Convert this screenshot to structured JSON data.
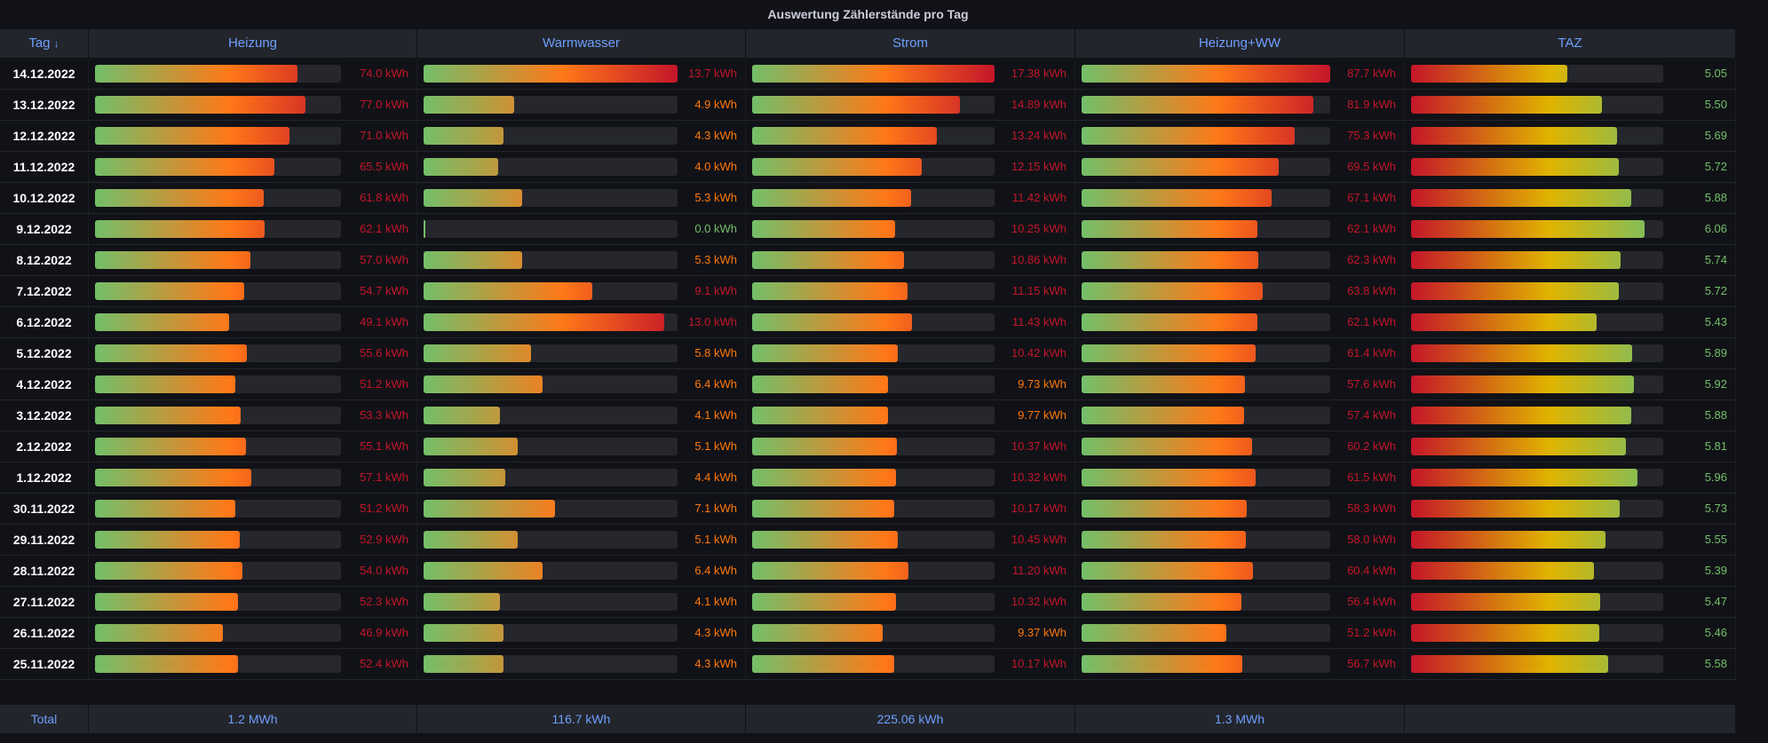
{
  "panel": {
    "title": "Auswertung Zählerstände pro Tag"
  },
  "header": {
    "columns": [
      {
        "label": "Tag",
        "sort_icon": "↓"
      },
      {
        "label": "Heizung"
      },
      {
        "label": "Warmwasser"
      },
      {
        "label": "Strom"
      },
      {
        "label": "Heizung+WW"
      },
      {
        "label": "TAZ"
      }
    ]
  },
  "colors": {
    "green": "#73bf69",
    "orange": "#ff7818",
    "red": "#c4162a",
    "yellow": "#e0b400",
    "text_red": "#c4162a",
    "text_orange": "#ff780a",
    "text_green": "#73bf69",
    "link_blue": "#6e9fff"
  },
  "rows": [
    {
      "tag": "14.12.2022",
      "heizung": "74.0 kWh",
      "heizung_v": 74.0,
      "ww": "13.7 kWh",
      "ww_v": 13.7,
      "strom": "17.38 kWh",
      "strom_v": 17.38,
      "hww": "87.7 kWh",
      "hww_v": 87.7,
      "taz": "5.05",
      "taz_v": 5.05
    },
    {
      "tag": "13.12.2022",
      "heizung": "77.0 kWh",
      "heizung_v": 77.0,
      "ww": "4.9 kWh",
      "ww_v": 4.9,
      "strom": "14.89 kWh",
      "strom_v": 14.89,
      "hww": "81.9 kWh",
      "hww_v": 81.9,
      "taz": "5.50",
      "taz_v": 5.5
    },
    {
      "tag": "12.12.2022",
      "heizung": "71.0 kWh",
      "heizung_v": 71.0,
      "ww": "4.3 kWh",
      "ww_v": 4.3,
      "strom": "13.24 kWh",
      "strom_v": 13.24,
      "hww": "75.3 kWh",
      "hww_v": 75.3,
      "taz": "5.69",
      "taz_v": 5.69
    },
    {
      "tag": "11.12.2022",
      "heizung": "65.5 kWh",
      "heizung_v": 65.5,
      "ww": "4.0 kWh",
      "ww_v": 4.0,
      "strom": "12.15 kWh",
      "strom_v": 12.15,
      "hww": "69.5 kWh",
      "hww_v": 69.5,
      "taz": "5.72",
      "taz_v": 5.72
    },
    {
      "tag": "10.12.2022",
      "heizung": "61.8 kWh",
      "heizung_v": 61.8,
      "ww": "5.3 kWh",
      "ww_v": 5.3,
      "strom": "11.42 kWh",
      "strom_v": 11.42,
      "hww": "67.1 kWh",
      "hww_v": 67.1,
      "taz": "5.88",
      "taz_v": 5.88
    },
    {
      "tag": "9.12.2022",
      "heizung": "62.1 kWh",
      "heizung_v": 62.1,
      "ww": "0.0 kWh",
      "ww_v": 0.0,
      "strom": "10.25 kWh",
      "strom_v": 10.25,
      "hww": "62.1 kWh",
      "hww_v": 62.1,
      "taz": "6.06",
      "taz_v": 6.06
    },
    {
      "tag": "8.12.2022",
      "heizung": "57.0 kWh",
      "heizung_v": 57.0,
      "ww": "5.3 kWh",
      "ww_v": 5.3,
      "strom": "10.86 kWh",
      "strom_v": 10.86,
      "hww": "62.3 kWh",
      "hww_v": 62.3,
      "taz": "5.74",
      "taz_v": 5.74
    },
    {
      "tag": "7.12.2022",
      "heizung": "54.7 kWh",
      "heizung_v": 54.7,
      "ww": "9.1 kWh",
      "ww_v": 9.1,
      "strom": "11.15 kWh",
      "strom_v": 11.15,
      "hww": "63.8 kWh",
      "hww_v": 63.8,
      "taz": "5.72",
      "taz_v": 5.72
    },
    {
      "tag": "6.12.2022",
      "heizung": "49.1 kWh",
      "heizung_v": 49.1,
      "ww": "13.0 kWh",
      "ww_v": 13.0,
      "strom": "11.43 kWh",
      "strom_v": 11.43,
      "hww": "62.1 kWh",
      "hww_v": 62.1,
      "taz": "5.43",
      "taz_v": 5.43
    },
    {
      "tag": "5.12.2022",
      "heizung": "55.6 kWh",
      "heizung_v": 55.6,
      "ww": "5.8 kWh",
      "ww_v": 5.8,
      "strom": "10.42 kWh",
      "strom_v": 10.42,
      "hww": "61.4 kWh",
      "hww_v": 61.4,
      "taz": "5.89",
      "taz_v": 5.89
    },
    {
      "tag": "4.12.2022",
      "heizung": "51.2 kWh",
      "heizung_v": 51.2,
      "ww": "6.4 kWh",
      "ww_v": 6.4,
      "strom": "9.73 kWh",
      "strom_v": 9.73,
      "hww": "57.6 kWh",
      "hww_v": 57.6,
      "taz": "5.92",
      "taz_v": 5.92
    },
    {
      "tag": "3.12.2022",
      "heizung": "53.3 kWh",
      "heizung_v": 53.3,
      "ww": "4.1 kWh",
      "ww_v": 4.1,
      "strom": "9.77 kWh",
      "strom_v": 9.77,
      "hww": "57.4 kWh",
      "hww_v": 57.4,
      "taz": "5.88",
      "taz_v": 5.88
    },
    {
      "tag": "2.12.2022",
      "heizung": "55.1 kWh",
      "heizung_v": 55.1,
      "ww": "5.1 kWh",
      "ww_v": 5.1,
      "strom": "10.37 kWh",
      "strom_v": 10.37,
      "hww": "60.2 kWh",
      "hww_v": 60.2,
      "taz": "5.81",
      "taz_v": 5.81
    },
    {
      "tag": "1.12.2022",
      "heizung": "57.1 kWh",
      "heizung_v": 57.1,
      "ww": "4.4 kWh",
      "ww_v": 4.4,
      "strom": "10.32 kWh",
      "strom_v": 10.32,
      "hww": "61.5 kWh",
      "hww_v": 61.5,
      "taz": "5.96",
      "taz_v": 5.96
    },
    {
      "tag": "30.11.2022",
      "heizung": "51.2 kWh",
      "heizung_v": 51.2,
      "ww": "7.1 kWh",
      "ww_v": 7.1,
      "strom": "10.17 kWh",
      "strom_v": 10.17,
      "hww": "58.3 kWh",
      "hww_v": 58.3,
      "taz": "5.73",
      "taz_v": 5.73
    },
    {
      "tag": "29.11.2022",
      "heizung": "52.9 kWh",
      "heizung_v": 52.9,
      "ww": "5.1 kWh",
      "ww_v": 5.1,
      "strom": "10.45 kWh",
      "strom_v": 10.45,
      "hww": "58.0 kWh",
      "hww_v": 58.0,
      "taz": "5.55",
      "taz_v": 5.55
    },
    {
      "tag": "28.11.2022",
      "heizung": "54.0 kWh",
      "heizung_v": 54.0,
      "ww": "6.4 kWh",
      "ww_v": 6.4,
      "strom": "11.20 kWh",
      "strom_v": 11.2,
      "hww": "60.4 kWh",
      "hww_v": 60.4,
      "taz": "5.39",
      "taz_v": 5.39
    },
    {
      "tag": "27.11.2022",
      "heizung": "52.3 kWh",
      "heizung_v": 52.3,
      "ww": "4.1 kWh",
      "ww_v": 4.1,
      "strom": "10.32 kWh",
      "strom_v": 10.32,
      "hww": "56.4 kWh",
      "hww_v": 56.4,
      "taz": "5.47",
      "taz_v": 5.47
    },
    {
      "tag": "26.11.2022",
      "heizung": "46.9 kWh",
      "heizung_v": 46.9,
      "ww": "4.3 kWh",
      "ww_v": 4.3,
      "strom": "9.37 kWh",
      "strom_v": 9.37,
      "hww": "51.2 kWh",
      "hww_v": 51.2,
      "taz": "5.46",
      "taz_v": 5.46
    },
    {
      "tag": "25.11.2022",
      "heizung": "52.4 kWh",
      "heizung_v": 52.4,
      "ww": "4.3 kWh",
      "ww_v": 4.3,
      "strom": "10.17 kWh",
      "strom_v": 10.17,
      "hww": "56.7 kWh",
      "hww_v": 56.7,
      "taz": "5.58",
      "taz_v": 5.58
    }
  ],
  "footer": {
    "label": "Total",
    "heizung": "1.2 MWh",
    "ww": "116.7 kWh",
    "strom": "225.06 kWh",
    "hww": "1.3 MWh",
    "taz": ""
  }
}
